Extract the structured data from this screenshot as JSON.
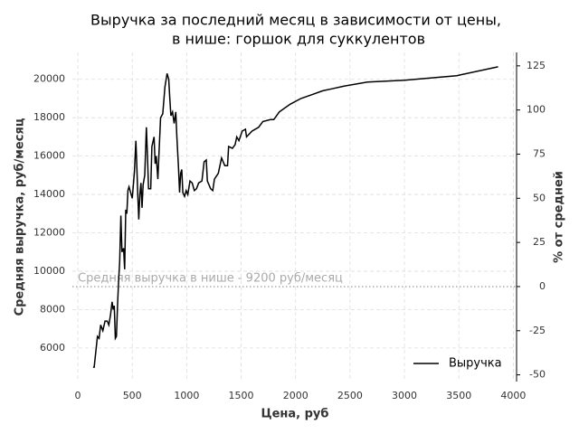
{
  "chart_data": {
    "type": "line",
    "title": [
      "Выручка за последний месяц в зависимости от цены,",
      "в нише: горшок для суккулентов"
    ],
    "xlabel": "Цена, руб",
    "ylabel": "Средняя выручка, руб/месяц",
    "y2label": "% от средней",
    "x": [
      140,
      150,
      165,
      180,
      195,
      210,
      230,
      250,
      270,
      285,
      300,
      315,
      325,
      335,
      345,
      355,
      365,
      375,
      385,
      395,
      405,
      420,
      430,
      440,
      450,
      460,
      470,
      500,
      520,
      533,
      540,
      550,
      560,
      570,
      580,
      590,
      600,
      615,
      630,
      640,
      650,
      670,
      680,
      700,
      710,
      720,
      735,
      745,
      760,
      780,
      800,
      820,
      835,
      845,
      855,
      870,
      885,
      900,
      910,
      925,
      935,
      945,
      955,
      965,
      980,
      995,
      1010,
      1030,
      1050,
      1070,
      1090,
      1110,
      1140,
      1160,
      1180,
      1190,
      1220,
      1240,
      1255,
      1290,
      1320,
      1350,
      1375,
      1385,
      1420,
      1445,
      1460,
      1480,
      1510,
      1540,
      1550,
      1600,
      1660,
      1700,
      1770,
      1800,
      1850,
      1950,
      2050,
      2150,
      2250,
      2330,
      2450,
      2660,
      3000,
      3480,
      3860
    ],
    "series": [
      {
        "name": "Выручка",
        "color": "#000000",
        "values": [
          5000,
          5000,
          5800,
          6600,
          6500,
          7200,
          6900,
          7400,
          7400,
          7200,
          7700,
          8400,
          8000,
          8200,
          6500,
          6600,
          8200,
          9500,
          10500,
          12900,
          11000,
          11200,
          10100,
          13200,
          13000,
          14200,
          14400,
          13800,
          15200,
          16800,
          15800,
          14100,
          12700,
          14000,
          14600,
          13300,
          14500,
          15000,
          17500,
          16000,
          14300,
          14300,
          16500,
          17000,
          15600,
          16000,
          14800,
          16100,
          18000,
          18200,
          19600,
          20300,
          20000,
          19000,
          18100,
          18300,
          17700,
          18300,
          17000,
          15400,
          14100,
          15100,
          15300,
          14100,
          13900,
          14200,
          14000,
          14700,
          14600,
          14200,
          14300,
          14600,
          14700,
          15700,
          15800,
          14700,
          14300,
          14200,
          14800,
          15100,
          15900,
          15500,
          15500,
          16500,
          16400,
          16600,
          17000,
          16800,
          17300,
          17400,
          17000,
          17300,
          17500,
          17800,
          17900,
          17900,
          18300,
          18700,
          19000,
          19200,
          19400,
          19500,
          19650,
          19860,
          19950,
          20190,
          20650
        ]
      }
    ],
    "xlim": [
      -50,
      4030
    ],
    "xticks": [
      0,
      500,
      1000,
      1500,
      2000,
      2500,
      3000,
      3500,
      4000
    ],
    "ylim": [
      4250,
      21400
    ],
    "yticks": [
      6000,
      8000,
      10000,
      12000,
      14000,
      16000,
      18000,
      20000
    ],
    "y2lim": [
      -53.8,
      132.6
    ],
    "y2ticks": [
      -50,
      -25,
      0,
      25,
      50,
      75,
      100,
      125
    ],
    "hline": 9200,
    "hline_label": "Средняя выручка в нише - 9200 руб/месяц",
    "grid": true,
    "legend": "lower right"
  }
}
